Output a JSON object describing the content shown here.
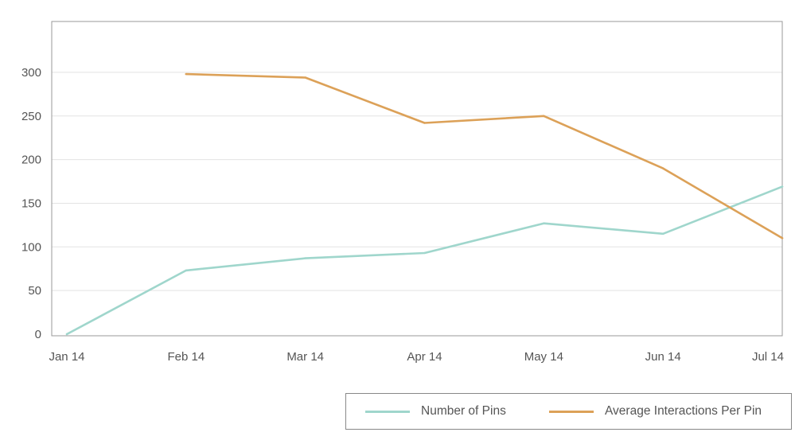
{
  "chart_data": {
    "type": "line",
    "categories": [
      "Jan 14",
      "Feb 14",
      "Mar 14",
      "Apr 14",
      "May 14",
      "Jun 14",
      "Jul 14"
    ],
    "y_ticks": [
      0,
      50,
      100,
      150,
      200,
      250,
      300
    ],
    "ylim": [
      0,
      355
    ],
    "grid": true,
    "legend_position": "bottom-right",
    "series": [
      {
        "name": "Number of Pins",
        "color": "#9fd6cc",
        "values": [
          0,
          73,
          87,
          93,
          127,
          115,
          169
        ]
      },
      {
        "name": "Average Interactions Per Pin",
        "color": "#dca158",
        "values": [
          null,
          298,
          294,
          242,
          250,
          190,
          110
        ]
      }
    ]
  }
}
